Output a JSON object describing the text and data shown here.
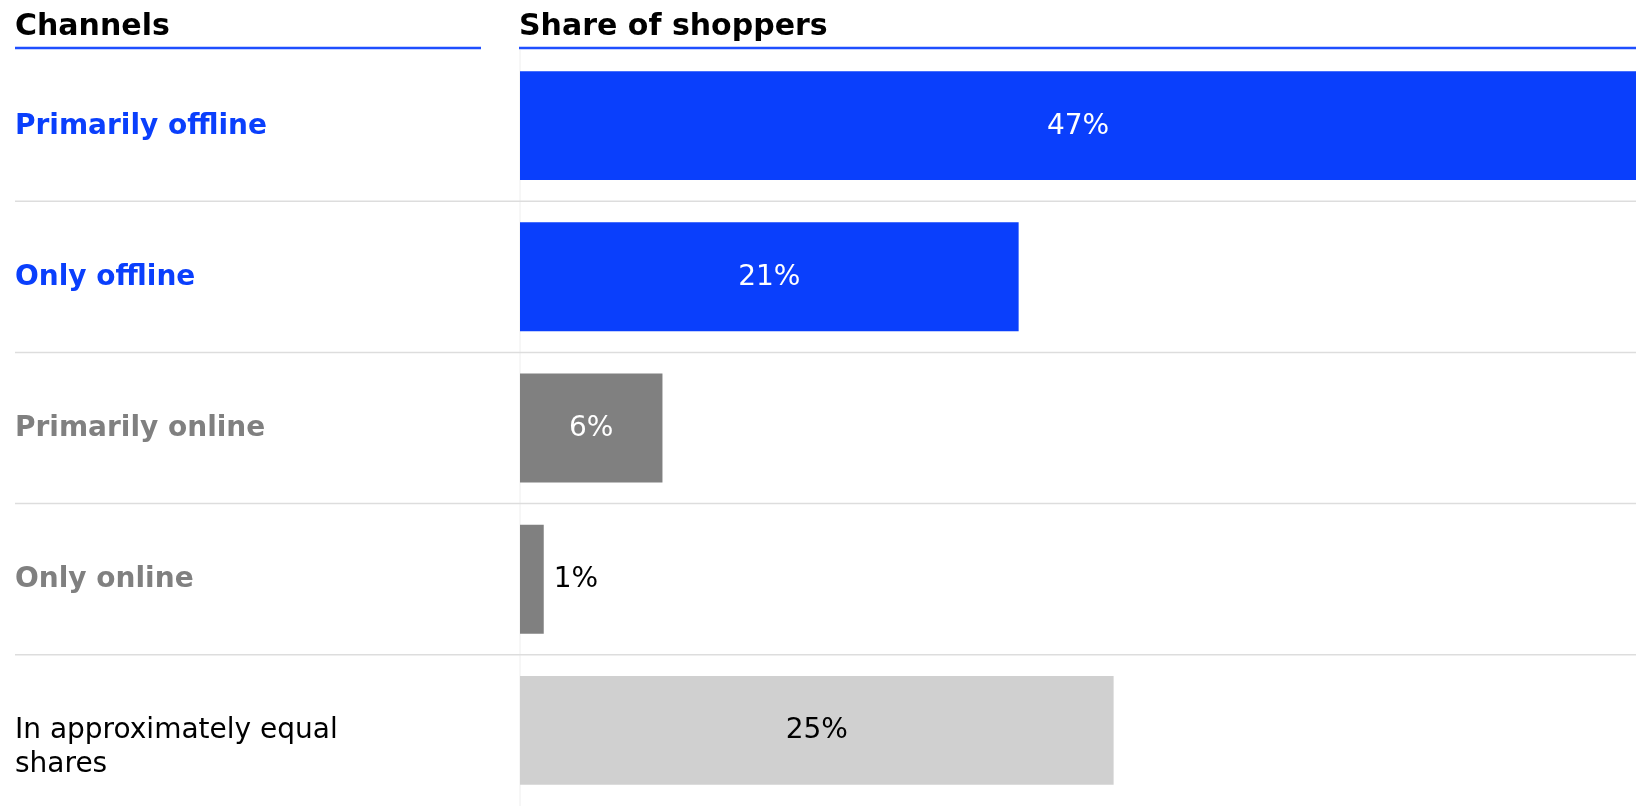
{
  "chart_data": {
    "type": "bar",
    "orientation": "horizontal",
    "xlabel": "Share of shoppers",
    "ylabel": "Channels",
    "categories": [
      "Primarily offline",
      "Only offline",
      "Primarily online",
      "Only online",
      "In approximately equal shares"
    ],
    "values": [
      47,
      21,
      6,
      1,
      25
    ],
    "colors": [
      "#0a3ffc",
      "#0a3ffc",
      "#808080",
      "#808080",
      "#d0d0d0"
    ],
    "value_labels": [
      "47%",
      "21%",
      "6%",
      "1%",
      "25%"
    ],
    "grid": "y"
  }
}
